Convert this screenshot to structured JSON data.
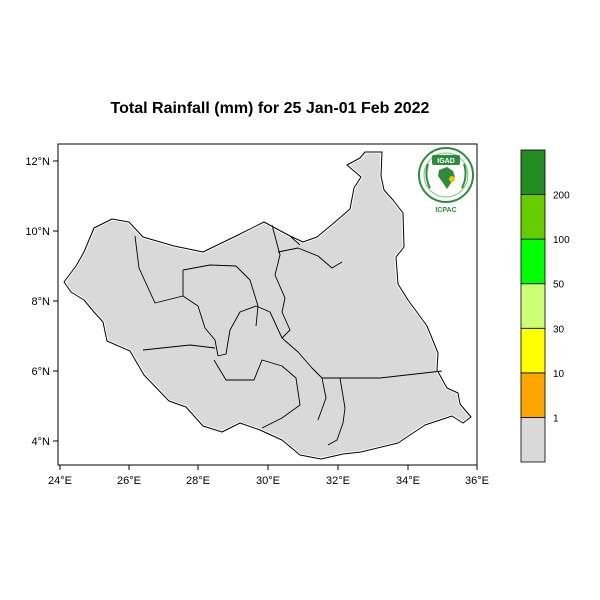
{
  "map": {
    "title": "Total Rainfall (mm) for 25 Jan-01 Feb 2022",
    "lat_ticks": [
      "12°N",
      "10°N",
      "8°N",
      "6°N",
      "4°N"
    ],
    "lon_ticks": [
      "24°E",
      "26°E",
      "28°E",
      "30°E",
      "32°E",
      "34°E",
      "36°E"
    ],
    "land_color": "#d9d9d9",
    "boundary_color": "#000000"
  },
  "colorbar": {
    "bins": [
      {
        "color": "#d9d9d9"
      },
      {
        "color": "#ffa500"
      },
      {
        "color": "#ffff00"
      },
      {
        "color": "#ccff73"
      },
      {
        "color": "#00ff00"
      },
      {
        "color": "#66cc00"
      },
      {
        "color": "#228b22"
      }
    ],
    "labels": [
      "1",
      "10",
      "30",
      "50",
      "100",
      "200"
    ]
  },
  "logo": {
    "top_text": "IGAD",
    "bottom_text": "ICPAC"
  }
}
